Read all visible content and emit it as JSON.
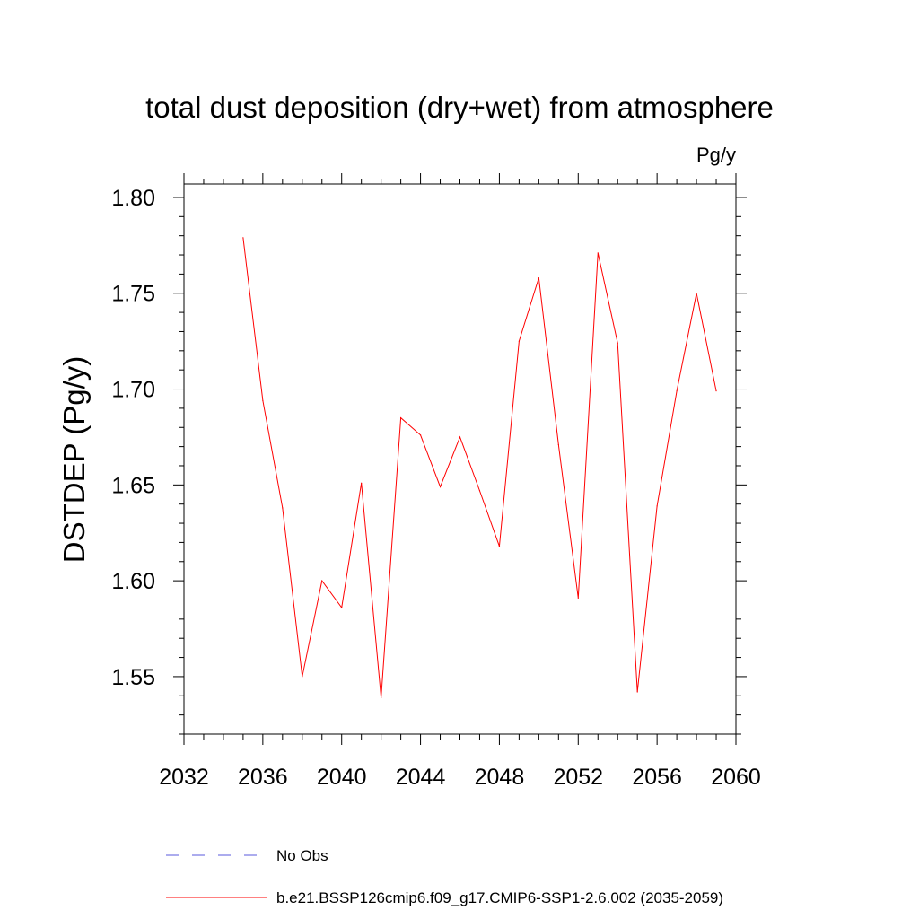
{
  "chart_data": {
    "type": "line",
    "title": "total dust deposition (dry+wet) from atmosphere",
    "units": "Pg/y",
    "xlabel": "",
    "ylabel": "DSTDEP  (Pg/y)",
    "xlim": [
      2032,
      2060
    ],
    "ylim": [
      1.52,
      1.807
    ],
    "x_ticks": [
      2032,
      2036,
      2040,
      2044,
      2048,
      2052,
      2056,
      2060
    ],
    "x_tick_labels": [
      "2032",
      "2036",
      "2040",
      "2044",
      "2048",
      "2052",
      "2056",
      "2060"
    ],
    "y_ticks": [
      1.55,
      1.6,
      1.65,
      1.7,
      1.75,
      1.8
    ],
    "y_tick_labels": [
      "1.55",
      "1.60",
      "1.65",
      "1.70",
      "1.75",
      "1.80"
    ],
    "grid": false,
    "series": [
      {
        "name": "b.e21.BSSP126cmip6.f09_g17.CMIP6-SSP1-2.6.002 (2035-2059)",
        "color": "#ff0000",
        "style": "solid",
        "x": [
          2035,
          2036,
          2037,
          2038,
          2039,
          2040,
          2041,
          2042,
          2043,
          2044,
          2045,
          2046,
          2047,
          2048,
          2049,
          2050,
          2051,
          2052,
          2053,
          2054,
          2055,
          2056,
          2057,
          2058,
          2059
        ],
        "values": [
          1.779,
          1.694,
          1.638,
          1.55,
          1.6,
          1.586,
          1.651,
          1.539,
          1.685,
          1.676,
          1.649,
          1.675,
          1.647,
          1.618,
          1.725,
          1.758,
          1.671,
          1.591,
          1.771,
          1.724,
          1.542,
          1.639,
          1.699,
          1.75,
          1.699
        ]
      }
    ],
    "legend": [
      {
        "label": "No Obs",
        "color": "#5a5adc",
        "style": "dashed"
      },
      {
        "label": "b.e21.BSSP126cmip6.f09_g17.CMIP6-SSP1-2.6.002 (2035-2059)",
        "color": "#ff0000",
        "style": "solid"
      }
    ],
    "legend_position": "bottom"
  }
}
